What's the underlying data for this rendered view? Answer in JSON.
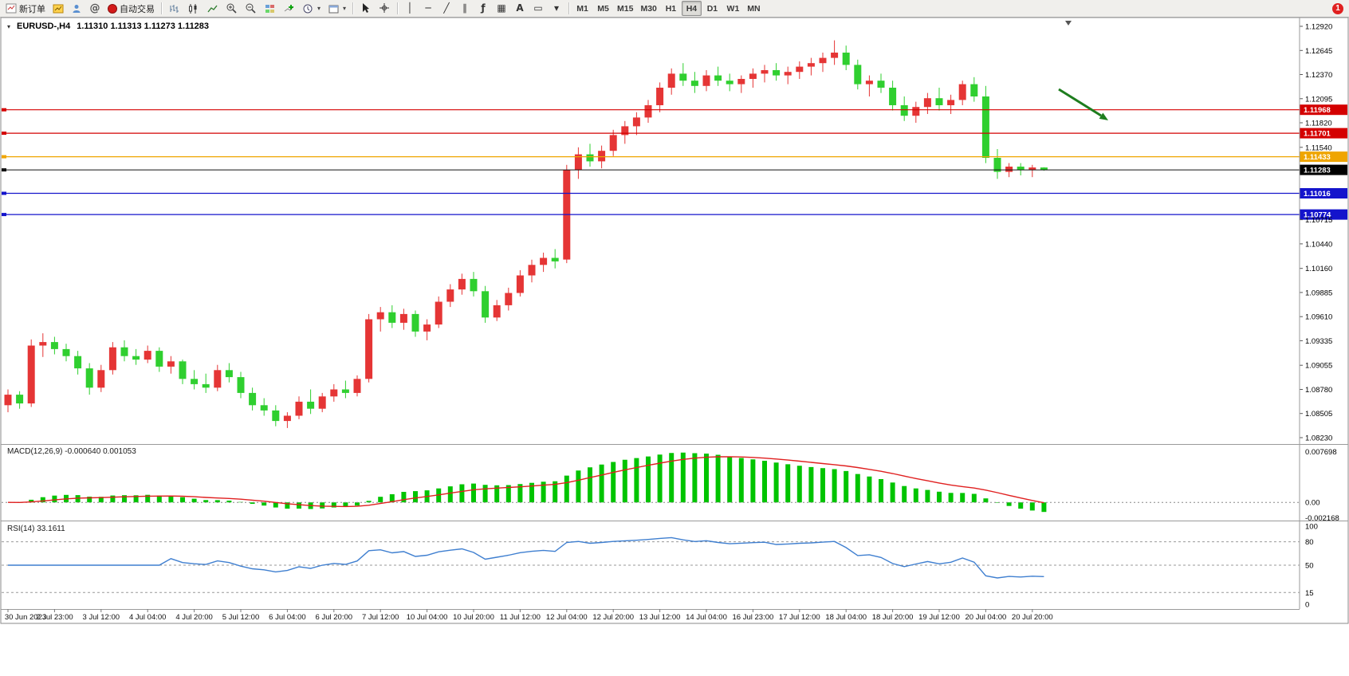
{
  "toolbar": {
    "new_order_label": "新订单",
    "auto_trading_label": "自动交易",
    "timeframes": [
      "M1",
      "M5",
      "M15",
      "M30",
      "H1",
      "H4",
      "D1",
      "W1",
      "MN"
    ],
    "active_timeframe": "H4",
    "alert_count": "1"
  },
  "icon_glyphs": {
    "metaeditor": "@",
    "vertical_line": "│",
    "horizontal_line": "─",
    "trendline": "╱",
    "channel": "∥",
    "fibonacci": "ƒ",
    "grid": "▦",
    "text_tool": "A",
    "label_tool": "▭",
    "dropdown": "▾",
    "collapse": "▾"
  },
  "chart": {
    "symbol_period": "EURUSD-,H4",
    "ohlc_text": "1.11310 1.11313 1.11273 1.11283"
  },
  "chart_data": {
    "type": "candlestick",
    "symbol": "EURUSD-",
    "timeframe": "H4",
    "current": {
      "open": 1.1131,
      "high": 1.11313,
      "low": 1.11273,
      "close": 1.11283
    },
    "y_axis": {
      "min": 1.0823,
      "max": 1.1292,
      "ticks": [
        "1.12920",
        "1.12645",
        "1.12370",
        "1.12095",
        "1.11820",
        "1.11540",
        "1.10715",
        "1.10440",
        "1.10160",
        "1.09885",
        "1.09610",
        "1.09335",
        "1.09055",
        "1.08780",
        "1.08505",
        "1.08230"
      ]
    },
    "x_labels": [
      "30 Jun 2023",
      "2 Jul 23:00",
      "3 Jul 12:00",
      "4 Jul 04:00",
      "4 Jul 20:00",
      "5 Jul 12:00",
      "6 Jul 04:00",
      "6 Jul 20:00",
      "7 Jul 12:00",
      "10 Jul 04:00",
      "10 Jul 20:00",
      "11 Jul 12:00",
      "12 Jul 04:00",
      "12 Jul 20:00",
      "13 Jul 12:00",
      "14 Jul 04:00",
      "16 Jul 23:00",
      "17 Jul 12:00",
      "18 Jul 04:00",
      "18 Jul 20:00",
      "19 Jul 12:00",
      "20 Jul 04:00",
      "20 Jul 20:00"
    ],
    "label_every_bars": 4,
    "colors": {
      "up": "#e53535",
      "down": "#2fcf2f",
      "bg": "#ffffff"
    },
    "candles": [
      [
        1.086,
        1.0878,
        1.0852,
        1.0872
      ],
      [
        1.0872,
        1.0876,
        1.0856,
        1.0862
      ],
      [
        1.0862,
        1.0935,
        1.0858,
        1.0928
      ],
      [
        1.0928,
        1.0942,
        1.0915,
        1.0932
      ],
      [
        1.0932,
        1.0938,
        1.0918,
        1.0924
      ],
      [
        1.0924,
        1.093,
        1.091,
        1.0916
      ],
      [
        1.0916,
        1.0922,
        1.0895,
        1.0902
      ],
      [
        1.0902,
        1.0908,
        1.0872,
        1.088
      ],
      [
        1.088,
        1.0906,
        1.0875,
        1.09
      ],
      [
        1.09,
        1.0932,
        1.0895,
        1.0926
      ],
      [
        1.0926,
        1.0934,
        1.091,
        1.0916
      ],
      [
        1.0916,
        1.0924,
        1.0906,
        1.0912
      ],
      [
        1.0912,
        1.0928,
        1.0908,
        1.0922
      ],
      [
        1.0922,
        1.0926,
        1.0898,
        1.0904
      ],
      [
        1.0904,
        1.0916,
        1.0896,
        1.091
      ],
      [
        1.091,
        1.0912,
        1.0884,
        1.089
      ],
      [
        1.089,
        1.09,
        1.0878,
        1.0884
      ],
      [
        1.0884,
        1.0896,
        1.0874,
        1.088
      ],
      [
        1.088,
        1.0906,
        1.0876,
        1.09
      ],
      [
        1.09,
        1.0908,
        1.0886,
        1.0892
      ],
      [
        1.0892,
        1.0898,
        1.0868,
        1.0874
      ],
      [
        1.0874,
        1.088,
        1.0854,
        1.086
      ],
      [
        1.086,
        1.0868,
        1.0848,
        1.0854
      ],
      [
        1.0854,
        1.086,
        1.0836,
        1.0842
      ],
      [
        1.0842,
        1.0852,
        1.0834,
        1.0848
      ],
      [
        1.0848,
        1.087,
        1.0844,
        1.0864
      ],
      [
        1.0864,
        1.0878,
        1.085,
        1.0856
      ],
      [
        1.0856,
        1.0874,
        1.0852,
        1.087
      ],
      [
        1.087,
        1.0884,
        1.0864,
        1.0878
      ],
      [
        1.0878,
        1.0888,
        1.0868,
        1.0874
      ],
      [
        1.0874,
        1.0894,
        1.087,
        1.089
      ],
      [
        1.089,
        1.0964,
        1.0886,
        1.0958
      ],
      [
        1.0958,
        1.0972,
        1.0944,
        1.0966
      ],
      [
        1.0966,
        1.0974,
        1.0948,
        1.0954
      ],
      [
        1.0954,
        1.097,
        1.0946,
        1.0964
      ],
      [
        1.0964,
        1.0968,
        1.0938,
        1.0944
      ],
      [
        1.0944,
        1.0958,
        1.0934,
        1.0952
      ],
      [
        1.0952,
        1.0984,
        1.0948,
        1.0978
      ],
      [
        1.0978,
        1.0998,
        1.0972,
        1.0992
      ],
      [
        1.0992,
        1.101,
        1.0986,
        1.1004
      ],
      [
        1.1004,
        1.1012,
        1.0984,
        1.099
      ],
      [
        1.099,
        1.0996,
        1.0954,
        1.096
      ],
      [
        1.096,
        1.098,
        1.0956,
        1.0974
      ],
      [
        1.0974,
        1.0994,
        1.0968,
        1.0988
      ],
      [
        1.0988,
        1.1014,
        1.0984,
        1.1008
      ],
      [
        1.1008,
        1.1026,
        1.1,
        1.102
      ],
      [
        1.102,
        1.1034,
        1.1012,
        1.1028
      ],
      [
        1.1028,
        1.1038,
        1.1016,
        1.1024
      ],
      [
        1.1026,
        1.1134,
        1.1022,
        1.1128
      ],
      [
        1.1128,
        1.1154,
        1.1118,
        1.1146
      ],
      [
        1.1146,
        1.1158,
        1.1132,
        1.1138
      ],
      [
        1.1138,
        1.1156,
        1.113,
        1.115
      ],
      [
        1.115,
        1.1174,
        1.1144,
        1.1168
      ],
      [
        1.1168,
        1.1184,
        1.1158,
        1.1178
      ],
      [
        1.1178,
        1.1194,
        1.1168,
        1.1188
      ],
      [
        1.1188,
        1.1208,
        1.1182,
        1.1202
      ],
      [
        1.1202,
        1.1228,
        1.1194,
        1.1222
      ],
      [
        1.1222,
        1.1244,
        1.1214,
        1.1238
      ],
      [
        1.1238,
        1.125,
        1.1224,
        1.123
      ],
      [
        1.123,
        1.124,
        1.1216,
        1.1224
      ],
      [
        1.1224,
        1.1242,
        1.1218,
        1.1236
      ],
      [
        1.1236,
        1.1246,
        1.1224,
        1.123
      ],
      [
        1.123,
        1.1238,
        1.1218,
        1.1226
      ],
      [
        1.1226,
        1.1236,
        1.1216,
        1.1232
      ],
      [
        1.1232,
        1.1244,
        1.1222,
        1.1238
      ],
      [
        1.1238,
        1.1248,
        1.1228,
        1.1242
      ],
      [
        1.1242,
        1.125,
        1.123,
        1.1236
      ],
      [
        1.1236,
        1.1246,
        1.1226,
        1.124
      ],
      [
        1.124,
        1.1252,
        1.1232,
        1.1246
      ],
      [
        1.1246,
        1.1256,
        1.1236,
        1.125
      ],
      [
        1.125,
        1.1262,
        1.124,
        1.1256
      ],
      [
        1.1256,
        1.1276,
        1.1248,
        1.1262
      ],
      [
        1.1262,
        1.127,
        1.1242,
        1.1248
      ],
      [
        1.1248,
        1.1254,
        1.122,
        1.1226
      ],
      [
        1.1226,
        1.1236,
        1.1212,
        1.123
      ],
      [
        1.123,
        1.1238,
        1.1216,
        1.1222
      ],
      [
        1.1222,
        1.123,
        1.1196,
        1.1202
      ],
      [
        1.1202,
        1.1212,
        1.1184,
        1.119
      ],
      [
        1.119,
        1.1206,
        1.1182,
        1.12
      ],
      [
        1.12,
        1.1216,
        1.1192,
        1.121
      ],
      [
        1.121,
        1.1222,
        1.1196,
        1.1202
      ],
      [
        1.1202,
        1.1214,
        1.1192,
        1.1208
      ],
      [
        1.1208,
        1.123,
        1.1202,
        1.1226
      ],
      [
        1.1226,
        1.1234,
        1.1206,
        1.1212
      ],
      [
        1.1212,
        1.1224,
        1.1136,
        1.1142
      ],
      [
        1.1142,
        1.1152,
        1.1118,
        1.1126
      ],
      [
        1.1126,
        1.1136,
        1.112,
        1.1132
      ],
      [
        1.1132,
        1.1136,
        1.1122,
        1.1128
      ],
      [
        1.1128,
        1.1134,
        1.112,
        1.1131
      ],
      [
        1.1131,
        1.11313,
        1.11273,
        1.11283
      ]
    ],
    "h_lines": [
      {
        "price": 1.11968,
        "color": "#d40000",
        "type": "resistance"
      },
      {
        "price": 1.11701,
        "color": "#d40000",
        "type": "resistance"
      },
      {
        "price": 1.11433,
        "color": "#efa500",
        "type": "support"
      },
      {
        "price": 1.11283,
        "color": "#111111",
        "type": "current-price"
      },
      {
        "price": 1.11016,
        "color": "#1414cc",
        "type": "support"
      },
      {
        "price": 1.10774,
        "color": "#1414cc",
        "type": "support"
      }
    ],
    "indicators": [
      {
        "name": "MACD",
        "label": "MACD(12,26,9) -0.000640 0.001053",
        "params": [
          12,
          26,
          9
        ],
        "values_text": [
          "-0.000640",
          "0.001053"
        ],
        "axis_labels": [
          "0.007698",
          "0.00",
          "-0.002168"
        ],
        "histogram_color": "#00c400",
        "signal_color": "#e02020"
      },
      {
        "name": "RSI",
        "label": "RSI(14) 33.1611",
        "params": [
          14
        ],
        "value_text": "33.1611",
        "axis_labels": [
          "100",
          "80",
          "50",
          "15",
          "0"
        ],
        "levels": [
          80,
          50,
          15
        ],
        "line_color": "#3f7fd0"
      }
    ],
    "annotations": [
      {
        "type": "arrow",
        "direction": "down-right",
        "color": "#1e7d1e",
        "note": "bearish-arrow"
      }
    ]
  }
}
